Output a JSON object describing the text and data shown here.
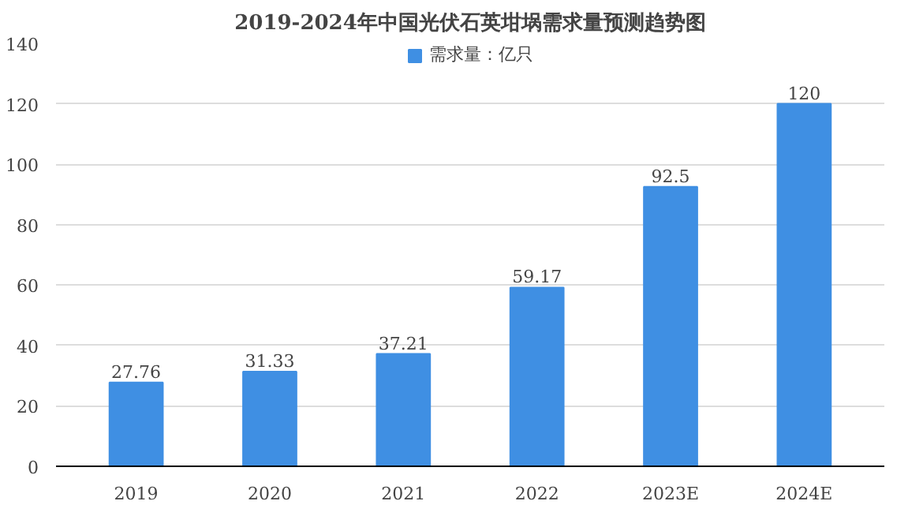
{
  "chart_data": {
    "type": "bar",
    "title": "2019-2024年中国光伏石英坩埚需求量预测趋势图",
    "categories": [
      "2019",
      "2020",
      "2021",
      "2022",
      "2023E",
      "2024E"
    ],
    "series": [
      {
        "name": "需求量：亿只",
        "color": "#3f8fe3",
        "values": [
          27.76,
          31.33,
          37.21,
          59.17,
          92.5,
          120
        ]
      }
    ],
    "ylim": [
      0,
      140
    ],
    "yticks": [
      0,
      20,
      40,
      60,
      80,
      100,
      120,
      140
    ],
    "grid": "y",
    "legend": "top",
    "data_labels": true
  }
}
